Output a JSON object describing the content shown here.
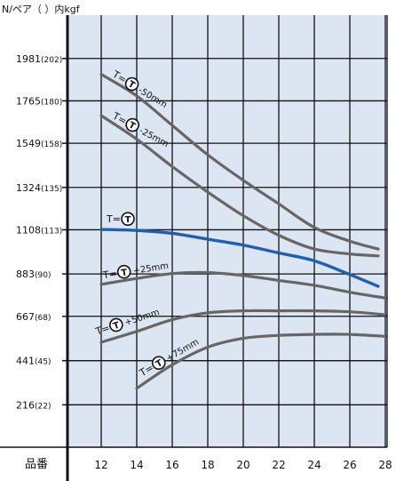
{
  "unit_label": "N/ペア（ ）内kgf",
  "chart_data": {
    "type": "line",
    "xlabel": "品番",
    "ylabel": "",
    "x_ticks": [
      12,
      14,
      16,
      18,
      20,
      22,
      24,
      26,
      28
    ],
    "xlim": [
      10.1,
      28.1
    ],
    "ylim": [
      0,
      2202
    ],
    "y_ticks": [
      {
        "value": 216,
        "label": "216",
        "sub": "(22)"
      },
      {
        "value": 441,
        "label": "441",
        "sub": "(45)"
      },
      {
        "value": 667,
        "label": "667",
        "sub": "(68)"
      },
      {
        "value": 883,
        "label": "883",
        "sub": "(90)"
      },
      {
        "value": 1108,
        "label": "1108",
        "sub": "(113)"
      },
      {
        "value": 1324,
        "label": "1324",
        "sub": "(135)"
      },
      {
        "value": 1549,
        "label": "1549",
        "sub": "(158)"
      },
      {
        "value": 1765,
        "label": "1765",
        "sub": "(180)"
      },
      {
        "value": 1981,
        "label": "1981",
        "sub": "(202)"
      }
    ],
    "grid": true,
    "background": "#dce6f3",
    "series": [
      {
        "label_prefix": "T=",
        "label_suffix": "-50mm",
        "color": "#666666",
        "highlight": false,
        "x": [
          12,
          14,
          16,
          18,
          20,
          22,
          24,
          26,
          27.6
        ],
        "y": [
          1900,
          1790,
          1640,
          1490,
          1360,
          1240,
          1120,
          1050,
          1010
        ]
      },
      {
        "label_prefix": "T=",
        "label_suffix": "-25mm",
        "color": "#666666",
        "highlight": false,
        "x": [
          12,
          14,
          16,
          18,
          20,
          22,
          24,
          26,
          27.6
        ],
        "y": [
          1690,
          1570,
          1430,
          1300,
          1180,
          1080,
          1010,
          985,
          975
        ]
      },
      {
        "label_prefix": "T=",
        "label_suffix": "",
        "color": "#1f5fae",
        "highlight": true,
        "x": [
          12,
          14,
          16,
          18,
          20,
          22,
          24,
          26,
          27.6
        ],
        "y": [
          1110,
          1105,
          1090,
          1060,
          1030,
          990,
          950,
          880,
          820
        ]
      },
      {
        "label_prefix": "T=",
        "label_suffix": "+25mm",
        "color": "#666666",
        "highlight": false,
        "x": [
          12,
          14,
          16,
          18,
          20,
          22,
          24,
          26,
          28
        ],
        "y": [
          830,
          860,
          885,
          890,
          875,
          850,
          825,
          790,
          760
        ]
      },
      {
        "label_prefix": "T=",
        "label_suffix": "+50mm",
        "color": "#666666",
        "highlight": false,
        "x": [
          12,
          14,
          16,
          18,
          20,
          22,
          24,
          26,
          28
        ],
        "y": [
          535,
          590,
          650,
          685,
          695,
          695,
          695,
          690,
          675
        ]
      },
      {
        "label_prefix": "T=",
        "label_suffix": "+75mm",
        "color": "#666666",
        "highlight": false,
        "x": [
          14,
          16,
          18,
          20,
          22,
          24,
          26,
          28
        ],
        "y": [
          300,
          420,
          510,
          555,
          570,
          575,
          575,
          565
        ]
      }
    ]
  }
}
